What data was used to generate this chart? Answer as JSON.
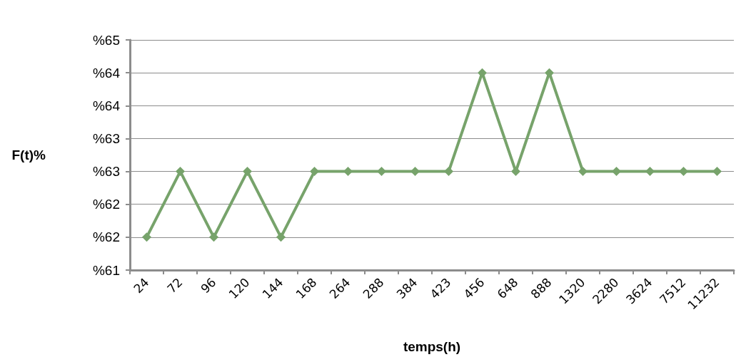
{
  "chart_data": {
    "type": "line",
    "xlabel": "temps(h)",
    "ylabel": "F(t)%",
    "categories": [
      "24",
      "72",
      "96",
      "120",
      "144",
      "168",
      "264",
      "288",
      "384",
      "423",
      "456",
      "648",
      "888",
      "1320",
      "2280",
      "3624",
      "7512",
      "11232"
    ],
    "series": [
      {
        "color": "#77a36b",
        "values": [
          61.5,
          62.5,
          61.5,
          62.5,
          61.5,
          62.5,
          62.5,
          62.5,
          62.5,
          62.5,
          64,
          62.5,
          64,
          62.5,
          62.5,
          62.5,
          62.5,
          62.5
        ]
      }
    ],
    "ylim": [
      61,
      64.5
    ],
    "yticks": [
      {
        "value": 61,
        "label": "%61"
      },
      {
        "value": 61.5,
        "label": "%62"
      },
      {
        "value": 62,
        "label": "%62"
      },
      {
        "value": 62.5,
        "label": "%63"
      },
      {
        "value": 63,
        "label": "%63"
      },
      {
        "value": 63.5,
        "label": "%64"
      },
      {
        "value": 64,
        "label": "%64"
      },
      {
        "value": 64.5,
        "label": "%65"
      }
    ],
    "grid": "y",
    "marker": "diamond",
    "line_style": "solid"
  }
}
